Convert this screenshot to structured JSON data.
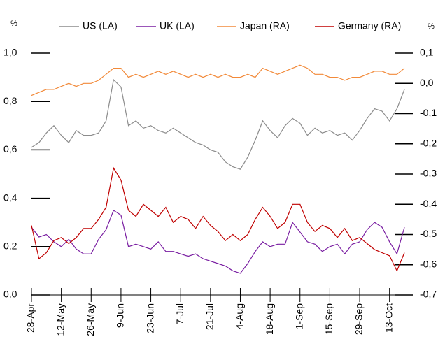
{
  "chart_data": {
    "type": "line",
    "y_label": "%",
    "y2_label": "%",
    "categories": [
      "28-Apr",
      null,
      null,
      null,
      "12-May",
      null,
      null,
      null,
      "26-May",
      null,
      null,
      null,
      "9-Jun",
      null,
      null,
      null,
      "23-Jun",
      null,
      null,
      null,
      "7-Jul",
      null,
      null,
      null,
      "21-Jul",
      null,
      null,
      null,
      "4-Aug",
      null,
      null,
      null,
      "18-Aug",
      null,
      null,
      null,
      "1-Sep",
      null,
      null,
      null,
      "15-Sep",
      null,
      null,
      null,
      "29-Sep",
      null,
      null,
      null,
      "13-Oct",
      null,
      null
    ],
    "series": [
      {
        "name": "US (LA)",
        "color": "#8c8c8c",
        "axis": "y",
        "values": [
          0.61,
          0.63,
          0.67,
          0.7,
          0.66,
          0.63,
          0.68,
          0.66,
          0.66,
          0.67,
          0.72,
          0.89,
          0.86,
          0.7,
          0.72,
          0.69,
          0.7,
          0.68,
          0.67,
          0.69,
          0.67,
          0.65,
          0.63,
          0.62,
          0.6,
          0.59,
          0.55,
          0.53,
          0.52,
          0.57,
          0.64,
          0.72,
          0.68,
          0.65,
          0.7,
          0.73,
          0.71,
          0.66,
          0.69,
          0.67,
          0.68,
          0.66,
          0.67,
          0.64,
          0.68,
          0.73,
          0.77,
          0.76,
          0.72,
          0.77,
          0.85
        ]
      },
      {
        "name": "UK (LA)",
        "color": "#7a1fa2",
        "axis": "y",
        "values": [
          0.28,
          0.24,
          0.25,
          0.22,
          0.2,
          0.23,
          0.19,
          0.17,
          0.17,
          0.23,
          0.27,
          0.35,
          0.33,
          0.2,
          0.21,
          0.2,
          0.19,
          0.22,
          0.18,
          0.18,
          0.17,
          0.16,
          0.17,
          0.15,
          0.14,
          0.13,
          0.12,
          0.1,
          0.09,
          0.13,
          0.18,
          0.22,
          0.2,
          0.21,
          0.21,
          0.3,
          0.26,
          0.22,
          0.21,
          0.18,
          0.2,
          0.21,
          0.17,
          0.21,
          0.22,
          0.27,
          0.3,
          0.28,
          0.22,
          0.17,
          0.28
        ]
      },
      {
        "name": "Japan (RA)",
        "color": "#f28a3a",
        "axis": "y2",
        "values": [
          -0.04,
          -0.03,
          -0.02,
          -0.02,
          -0.01,
          0.0,
          -0.01,
          0.0,
          0.0,
          0.01,
          0.03,
          0.05,
          0.05,
          0.02,
          0.03,
          0.02,
          0.03,
          0.04,
          0.03,
          0.04,
          0.03,
          0.02,
          0.03,
          0.02,
          0.03,
          0.02,
          0.03,
          0.02,
          0.02,
          0.03,
          0.02,
          0.05,
          0.04,
          0.03,
          0.04,
          0.05,
          0.06,
          0.05,
          0.03,
          0.03,
          0.02,
          0.02,
          0.01,
          0.02,
          0.02,
          0.03,
          0.04,
          0.04,
          0.03,
          0.03,
          0.05
        ]
      },
      {
        "name": "Germany (RA)",
        "color": "#c00000",
        "axis": "y2",
        "values": [
          -0.47,
          -0.58,
          -0.56,
          -0.52,
          -0.51,
          -0.53,
          -0.51,
          -0.48,
          -0.48,
          -0.45,
          -0.41,
          -0.28,
          -0.32,
          -0.42,
          -0.44,
          -0.4,
          -0.42,
          -0.44,
          -0.41,
          -0.46,
          -0.44,
          -0.45,
          -0.48,
          -0.44,
          -0.47,
          -0.49,
          -0.52,
          -0.5,
          -0.52,
          -0.5,
          -0.45,
          -0.41,
          -0.44,
          -0.48,
          -0.46,
          -0.4,
          -0.4,
          -0.46,
          -0.49,
          -0.47,
          -0.48,
          -0.51,
          -0.48,
          -0.52,
          -0.51,
          -0.53,
          -0.55,
          -0.56,
          -0.57,
          -0.62,
          -0.56
        ]
      }
    ],
    "ylim": [
      0,
      1
    ],
    "yticks": [
      {
        "value": 0,
        "label": "0,0"
      },
      {
        "value": 0.2,
        "label": "0,2"
      },
      {
        "value": 0.4,
        "label": "0,4"
      },
      {
        "value": 0.6,
        "label": "0,6"
      },
      {
        "value": 0.8,
        "label": "0,8"
      },
      {
        "value": 1,
        "label": "1,0"
      }
    ],
    "y2lim": [
      -0.7,
      0.1
    ],
    "y2ticks": [
      {
        "value": -0.7,
        "label": "-0,7"
      },
      {
        "value": -0.6,
        "label": "-0,6"
      },
      {
        "value": -0.5,
        "label": "-0,5"
      },
      {
        "value": -0.4,
        "label": "-0,4"
      },
      {
        "value": -0.3,
        "label": "-0,3"
      },
      {
        "value": -0.2,
        "label": "-0,2"
      },
      {
        "value": -0.1,
        "label": "-0,1"
      },
      {
        "value": 0,
        "label": "0,0"
      },
      {
        "value": 0.1,
        "label": "0,1"
      }
    ],
    "legend": "top"
  }
}
